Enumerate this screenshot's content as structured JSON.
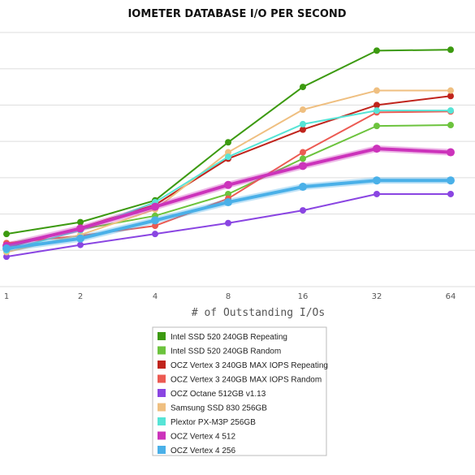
{
  "chart_data": {
    "type": "line",
    "title": "IOMETER DATABASE I/O PER SECOND",
    "xlabel": "# of Outstanding I/Os",
    "ylabel": "",
    "categories": [
      "1",
      "2",
      "4",
      "8",
      "16",
      "32",
      "64"
    ],
    "grid": true,
    "legend_position": "bottom-center",
    "series": [
      {
        "name": "Intel SSD 520 240GB Repeating",
        "color": "#3c9a10",
        "values": [
          5.8,
          7.1,
          9.5,
          15.9,
          22.0,
          26.0,
          26.1
        ]
      },
      {
        "name": "Intel SSD 520 240GB Random",
        "color": "#6cc33d",
        "values": [
          4.7,
          6.3,
          7.8,
          10.2,
          14.1,
          17.7,
          17.8
        ]
      },
      {
        "name": "OCZ Vertex 3 240GB MAX IOPS Repeating",
        "color": "#c0241c",
        "values": [
          4.3,
          6.5,
          9.0,
          14.1,
          17.3,
          20.0,
          21.0
        ]
      },
      {
        "name": "OCZ Vertex 3 240GB MAX IOPS Random",
        "color": "#ec5a52",
        "values": [
          4.8,
          5.6,
          6.7,
          9.7,
          14.8,
          19.2,
          19.3
        ]
      },
      {
        "name": "OCZ Octane 512GB v1.13",
        "color": "#8a45e2",
        "values": [
          3.3,
          4.6,
          5.8,
          7.0,
          8.4,
          10.2,
          10.2
        ]
      },
      {
        "name": "Samsung SSD 830 256GB",
        "color": "#efbf80",
        "values": [
          3.8,
          5.7,
          8.5,
          14.8,
          19.5,
          21.6,
          21.6
        ]
      },
      {
        "name": "Plextor PX-M3P 256GB",
        "color": "#57e4d6",
        "values": [
          4.0,
          6.2,
          9.3,
          14.3,
          17.9,
          19.4,
          19.4
        ]
      },
      {
        "name": "OCZ Vertex 4 512",
        "color": "#cc33bb",
        "values": [
          4.5,
          6.4,
          8.8,
          11.2,
          13.3,
          15.2,
          14.8
        ]
      },
      {
        "name": "OCZ Vertex 4 256",
        "color": "#4ab0e8",
        "values": [
          4.2,
          5.3,
          7.3,
          9.3,
          11.0,
          11.7,
          11.7
        ]
      }
    ]
  }
}
